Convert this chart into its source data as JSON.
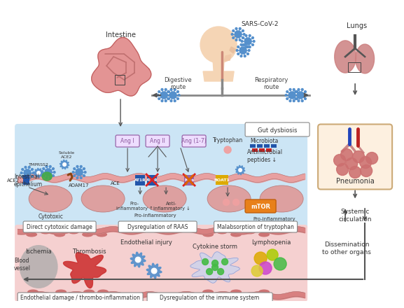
{
  "bg_color": "#ffffff",
  "intestine_label": "Intestine",
  "sars_label": "SARS-CoV-2",
  "lungs_label": "Lungs",
  "digestive_route": "Digestive\nroute",
  "respiratory_route": "Respiratory\nroute",
  "gut_dysbiosis": "Gut dysbiosis",
  "microbiota": "Microbiota",
  "antimicrobial": "Antimicrobial\npeptides ↓",
  "tryptophan": "Tryptophan",
  "boat1": "BOAT1",
  "mtor": "mTOR",
  "ace2": "ACE2",
  "tmprss2": "TMPRSS2",
  "soluble_ace2": "Soluble\nACE2",
  "adam17": "ADAM17",
  "ace": "ACE",
  "ang_i": "Ang I",
  "ang_ii": "Ang II",
  "ang_17": "Ang (1-7)",
  "at1r": "AT1R",
  "at2r": "AT2R",
  "mas": "Mas",
  "pro_inflam1": "Pro-\ninflammatory ↑",
  "anti_inflam": "Anti-\ninflammatory ↓",
  "pro_inflam2": "Pro-inflammatory",
  "cytotoxic": "Cytotoxic",
  "intestinal_epithelium": "Intestinal\nepithelium",
  "direct_cytotoxic": "Direct cytotoxic damage",
  "dysreg_raas": "Dysregulation of RAAS",
  "malab_trypt": "Malabsorption of tryptophan",
  "blood_vessel": "Blood\nvessel",
  "ischemia": "Ischemia",
  "thrombosis": "Thrombosis",
  "endothelial_injury": "Endothelial injury",
  "cytokine_storm": "Cytokine storm",
  "lymphopenia": "Lymphopenia",
  "endothelial_damage": "Endothelial damage / thrombo-inflammation",
  "dysreg_immune": "Dysregulation of the immune system",
  "pneumonia": "Pneumonia",
  "systemic_circulation": "Systemic\ncirculation",
  "dissemination": "Dissemination\nto other organs",
  "light_blue_bg": "#cce5f5",
  "light_pink_bg": "#f5d0d0",
  "light_tan_bg": "#fdf0e0",
  "epithelium_color": "#e8a0a0",
  "cell_color": "#e0b0b0",
  "virus_color": "#5590cc",
  "arrow_color": "#666666",
  "red_bar": "#e03030",
  "blue_bar": "#3080cc"
}
